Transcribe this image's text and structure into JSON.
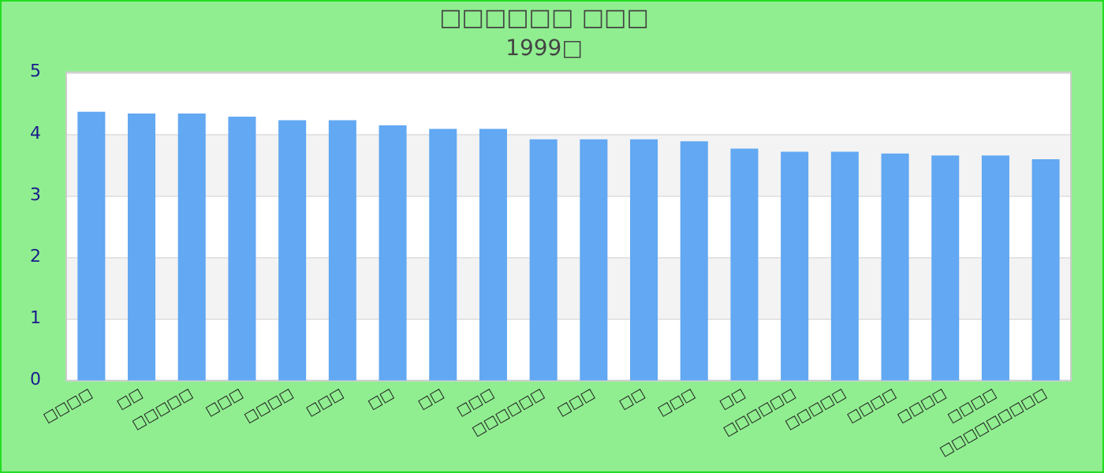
{
  "chart_data": {
    "type": "bar",
    "title": "□□□□□□ □□□",
    "subtitle": "1999□",
    "categories": [
      "□□□□",
      "□□",
      "□□□□□",
      "□□□",
      "□□□□",
      "□□□",
      "□□",
      "□□",
      "□□□",
      "□□□□□□",
      "□□□",
      "□□",
      "□□□",
      "□□",
      "□□□□□□",
      "□□□□□",
      "□□□□",
      "□□□□",
      "□□□□",
      "□□□□□□□□□"
    ],
    "values": [
      4.36,
      4.33,
      4.33,
      4.28,
      4.22,
      4.22,
      4.14,
      4.08,
      4.08,
      3.91,
      3.91,
      3.91,
      3.88,
      3.76,
      3.71,
      3.71,
      3.68,
      3.65,
      3.65,
      3.59
    ],
    "color": "#62a8f2",
    "ylim": [
      0,
      5
    ],
    "yticks": [
      0,
      1,
      2,
      3,
      4,
      5
    ],
    "grid": "y",
    "legend": false
  }
}
